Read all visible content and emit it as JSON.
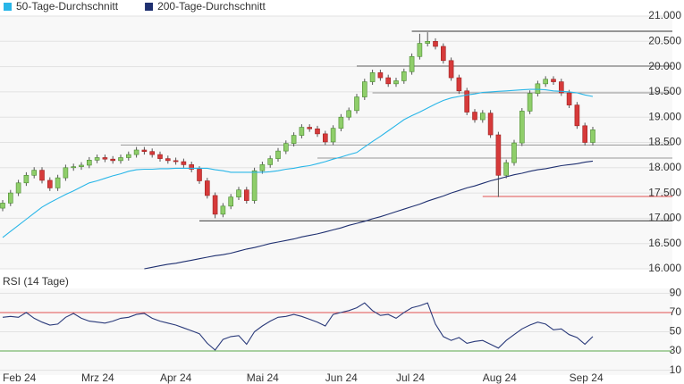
{
  "chart_data": [
    {
      "type": "candlestick",
      "categories": [
        "Feb 24",
        null,
        null,
        null,
        null,
        null,
        null,
        null,
        null,
        null,
        "Mrz 24",
        null,
        null,
        null,
        null,
        null,
        null,
        null,
        null,
        null,
        "Apr 24",
        null,
        null,
        null,
        null,
        null,
        null,
        null,
        null,
        null,
        null,
        "Mai 24",
        null,
        null,
        null,
        null,
        null,
        null,
        null,
        null,
        null,
        "Jun 24",
        null,
        null,
        null,
        null,
        null,
        null,
        null,
        null,
        "Jul 24",
        null,
        null,
        null,
        null,
        null,
        null,
        null,
        null,
        null,
        null,
        "Aug 24",
        null,
        null,
        null,
        null,
        null,
        null,
        null,
        null,
        null,
        null,
        "Sep 24",
        null,
        null,
        null
      ],
      "candles": {
        "up_color": "#8fce6a",
        "down_color": "#d63a3a",
        "open": [
          17200,
          17300,
          17500,
          17700,
          17850,
          17950,
          17750,
          17600,
          17800,
          18000,
          18020,
          18050,
          18150,
          18200,
          18170,
          18140,
          18200,
          18260,
          18350,
          18320,
          18260,
          18180,
          18140,
          18120,
          18060,
          17970,
          17740,
          17450,
          17080,
          17240,
          17420,
          17560,
          17350,
          17940,
          18060,
          18180,
          18330,
          18480,
          18640,
          18800,
          18770,
          18670,
          18510,
          18780,
          19000,
          19130,
          19400,
          19700,
          19880,
          19780,
          19660,
          19720,
          19900,
          20200,
          20460,
          20500,
          20400,
          20120,
          19780,
          19520,
          19100,
          18950,
          19080,
          18650,
          17850,
          18100,
          18490,
          19120,
          19470,
          19660,
          19750,
          19700,
          19480,
          19240,
          18830,
          18500
        ],
        "high": [
          17360,
          17560,
          17760,
          17910,
          18010,
          18010,
          17810,
          17860,
          18060,
          18080,
          18110,
          18210,
          18260,
          18260,
          18230,
          18260,
          18320,
          18410,
          18410,
          18380,
          18320,
          18240,
          18200,
          18180,
          18120,
          18030,
          17800,
          17510,
          17300,
          17480,
          17620,
          17620,
          18000,
          18120,
          18240,
          18390,
          18540,
          18700,
          18860,
          18860,
          18830,
          18730,
          18840,
          19060,
          19190,
          19460,
          19760,
          19940,
          19940,
          19840,
          19780,
          19960,
          20260,
          20650,
          20680,
          20560,
          20460,
          20180,
          19840,
          19580,
          19160,
          19140,
          19140,
          18710,
          18160,
          18550,
          19180,
          19530,
          19720,
          19810,
          19810,
          19760,
          19540,
          19300,
          18890,
          18810
        ],
        "low": [
          17140,
          17240,
          17440,
          17640,
          17790,
          17690,
          17540,
          17540,
          17740,
          17940,
          17960,
          17990,
          18090,
          18110,
          18080,
          18080,
          18140,
          18200,
          18260,
          18200,
          18120,
          18080,
          18060,
          18000,
          17910,
          17680,
          17390,
          17000,
          17020,
          17180,
          17360,
          17290,
          17290,
          17880,
          18000,
          18120,
          18270,
          18420,
          18580,
          18710,
          18610,
          18450,
          18450,
          18720,
          18940,
          19070,
          19340,
          19640,
          19720,
          19600,
          19600,
          19660,
          19840,
          20140,
          20400,
          20340,
          20060,
          19720,
          19460,
          19040,
          18890,
          18890,
          18590,
          17420,
          17790,
          18040,
          18430,
          19060,
          19410,
          19600,
          19640,
          19420,
          19180,
          18770,
          18440,
          18440
        ],
        "close": [
          17300,
          17500,
          17700,
          17850,
          17950,
          17750,
          17600,
          17800,
          18000,
          18020,
          18050,
          18150,
          18200,
          18170,
          18140,
          18200,
          18260,
          18350,
          18320,
          18260,
          18180,
          18140,
          18120,
          18060,
          17970,
          17740,
          17450,
          17080,
          17240,
          17420,
          17560,
          17350,
          17940,
          18060,
          18180,
          18330,
          18480,
          18640,
          18800,
          18770,
          18670,
          18510,
          18780,
          19000,
          19130,
          19400,
          19700,
          19880,
          19780,
          19660,
          19720,
          19900,
          20200,
          20460,
          20500,
          20400,
          20120,
          19780,
          19520,
          19100,
          18950,
          19080,
          18650,
          17850,
          18100,
          18490,
          19120,
          19470,
          19660,
          19750,
          19700,
          19480,
          19240,
          18830,
          18500,
          18750
        ]
      },
      "series": [
        {
          "name": "50-Tage-Durchschnitt",
          "color": "#29b6e8",
          "values": [
            16620,
            16740,
            16860,
            16980,
            17100,
            17220,
            17310,
            17390,
            17470,
            17540,
            17620,
            17700,
            17740,
            17790,
            17840,
            17880,
            17930,
            17960,
            17970,
            17970,
            17980,
            17980,
            17990,
            17990,
            17990,
            17990,
            17990,
            17960,
            17940,
            17910,
            17910,
            17910,
            17910,
            17910,
            17920,
            17940,
            17970,
            17990,
            18020,
            18040,
            18080,
            18120,
            18170,
            18210,
            18260,
            18300,
            18410,
            18520,
            18620,
            18730,
            18840,
            18950,
            19030,
            19100,
            19180,
            19260,
            19330,
            19380,
            19410,
            19440,
            19460,
            19490,
            19500,
            19510,
            19520,
            19530,
            19540,
            19550,
            19550,
            19540,
            19520,
            19510,
            19500,
            19480,
            19440,
            19410
          ]
        },
        {
          "name": "200-Tage-Durchschnitt",
          "color": "#1f3070",
          "values": [
            null,
            null,
            null,
            null,
            null,
            null,
            null,
            null,
            null,
            null,
            null,
            null,
            null,
            null,
            null,
            null,
            null,
            null,
            16000,
            16030,
            16060,
            16090,
            16110,
            16140,
            16170,
            16200,
            16230,
            16260,
            16280,
            16310,
            16350,
            16390,
            16420,
            16460,
            16500,
            16530,
            16560,
            16590,
            16630,
            16660,
            16690,
            16730,
            16770,
            16810,
            16860,
            16900,
            16940,
            16990,
            17030,
            17080,
            17130,
            17180,
            17230,
            17280,
            17340,
            17390,
            17440,
            17500,
            17550,
            17600,
            17640,
            17690,
            17740,
            17780,
            17820,
            17860,
            17890,
            17930,
            17960,
            17980,
            18010,
            18040,
            18060,
            18080,
            18110,
            18130
          ]
        }
      ],
      "ylim": [
        16000,
        21000
      ],
      "yticks": [
        {
          "value": 16000,
          "label": "16.000"
        },
        {
          "value": 16500,
          "label": "16.500"
        },
        {
          "value": 17000,
          "label": "17.000"
        },
        {
          "value": 17500,
          "label": "17.500"
        },
        {
          "value": 18000,
          "label": "18.000"
        },
        {
          "value": 18500,
          "label": "18.500"
        },
        {
          "value": 19000,
          "label": "19.000"
        },
        {
          "value": 19500,
          "label": "19.500"
        },
        {
          "value": 20000,
          "label": "20.000"
        },
        {
          "value": 20500,
          "label": "20.500"
        },
        {
          "value": 21000,
          "label": "21.000"
        }
      ],
      "levels": [
        {
          "value": 20700,
          "color": "#333333"
        },
        {
          "value": 20010,
          "color": "#aaaaaa"
        },
        {
          "value": 19480,
          "color": "#999999"
        },
        {
          "value": 18450,
          "color": "#999999"
        },
        {
          "value": 18190,
          "color": "#999999"
        },
        {
          "value": 17430,
          "color": "#e05050"
        },
        {
          "value": 16950,
          "color": "#333333"
        }
      ],
      "grid": true,
      "legend_position": "top-left"
    },
    {
      "type": "line",
      "title": "RSI (14 Tage)",
      "series": [
        {
          "color": "#2a3a7a",
          "values": [
            65,
            66,
            65,
            70,
            64,
            60,
            57,
            58,
            65,
            69,
            64,
            61,
            60,
            59,
            61,
            64,
            65,
            68,
            69,
            64,
            61,
            59,
            57,
            54,
            51,
            48,
            38,
            31,
            42,
            45,
            46,
            37,
            50,
            56,
            61,
            65,
            66,
            68,
            66,
            63,
            60,
            56,
            68,
            70,
            72,
            75,
            80,
            72,
            67,
            68,
            64,
            70,
            75,
            77,
            80,
            58,
            45,
            41,
            44,
            38,
            40,
            41,
            37,
            33,
            41,
            47,
            53,
            57,
            60,
            58,
            52,
            53,
            47,
            44,
            37,
            45
          ]
        }
      ],
      "ylim": [
        5,
        95
      ],
      "yticks": [
        10,
        30,
        50,
        70,
        90
      ],
      "levels": [
        {
          "value": 70,
          "color": "#e05050"
        },
        {
          "value": 30,
          "color": "#5aa84a"
        }
      ],
      "grid": true
    }
  ]
}
